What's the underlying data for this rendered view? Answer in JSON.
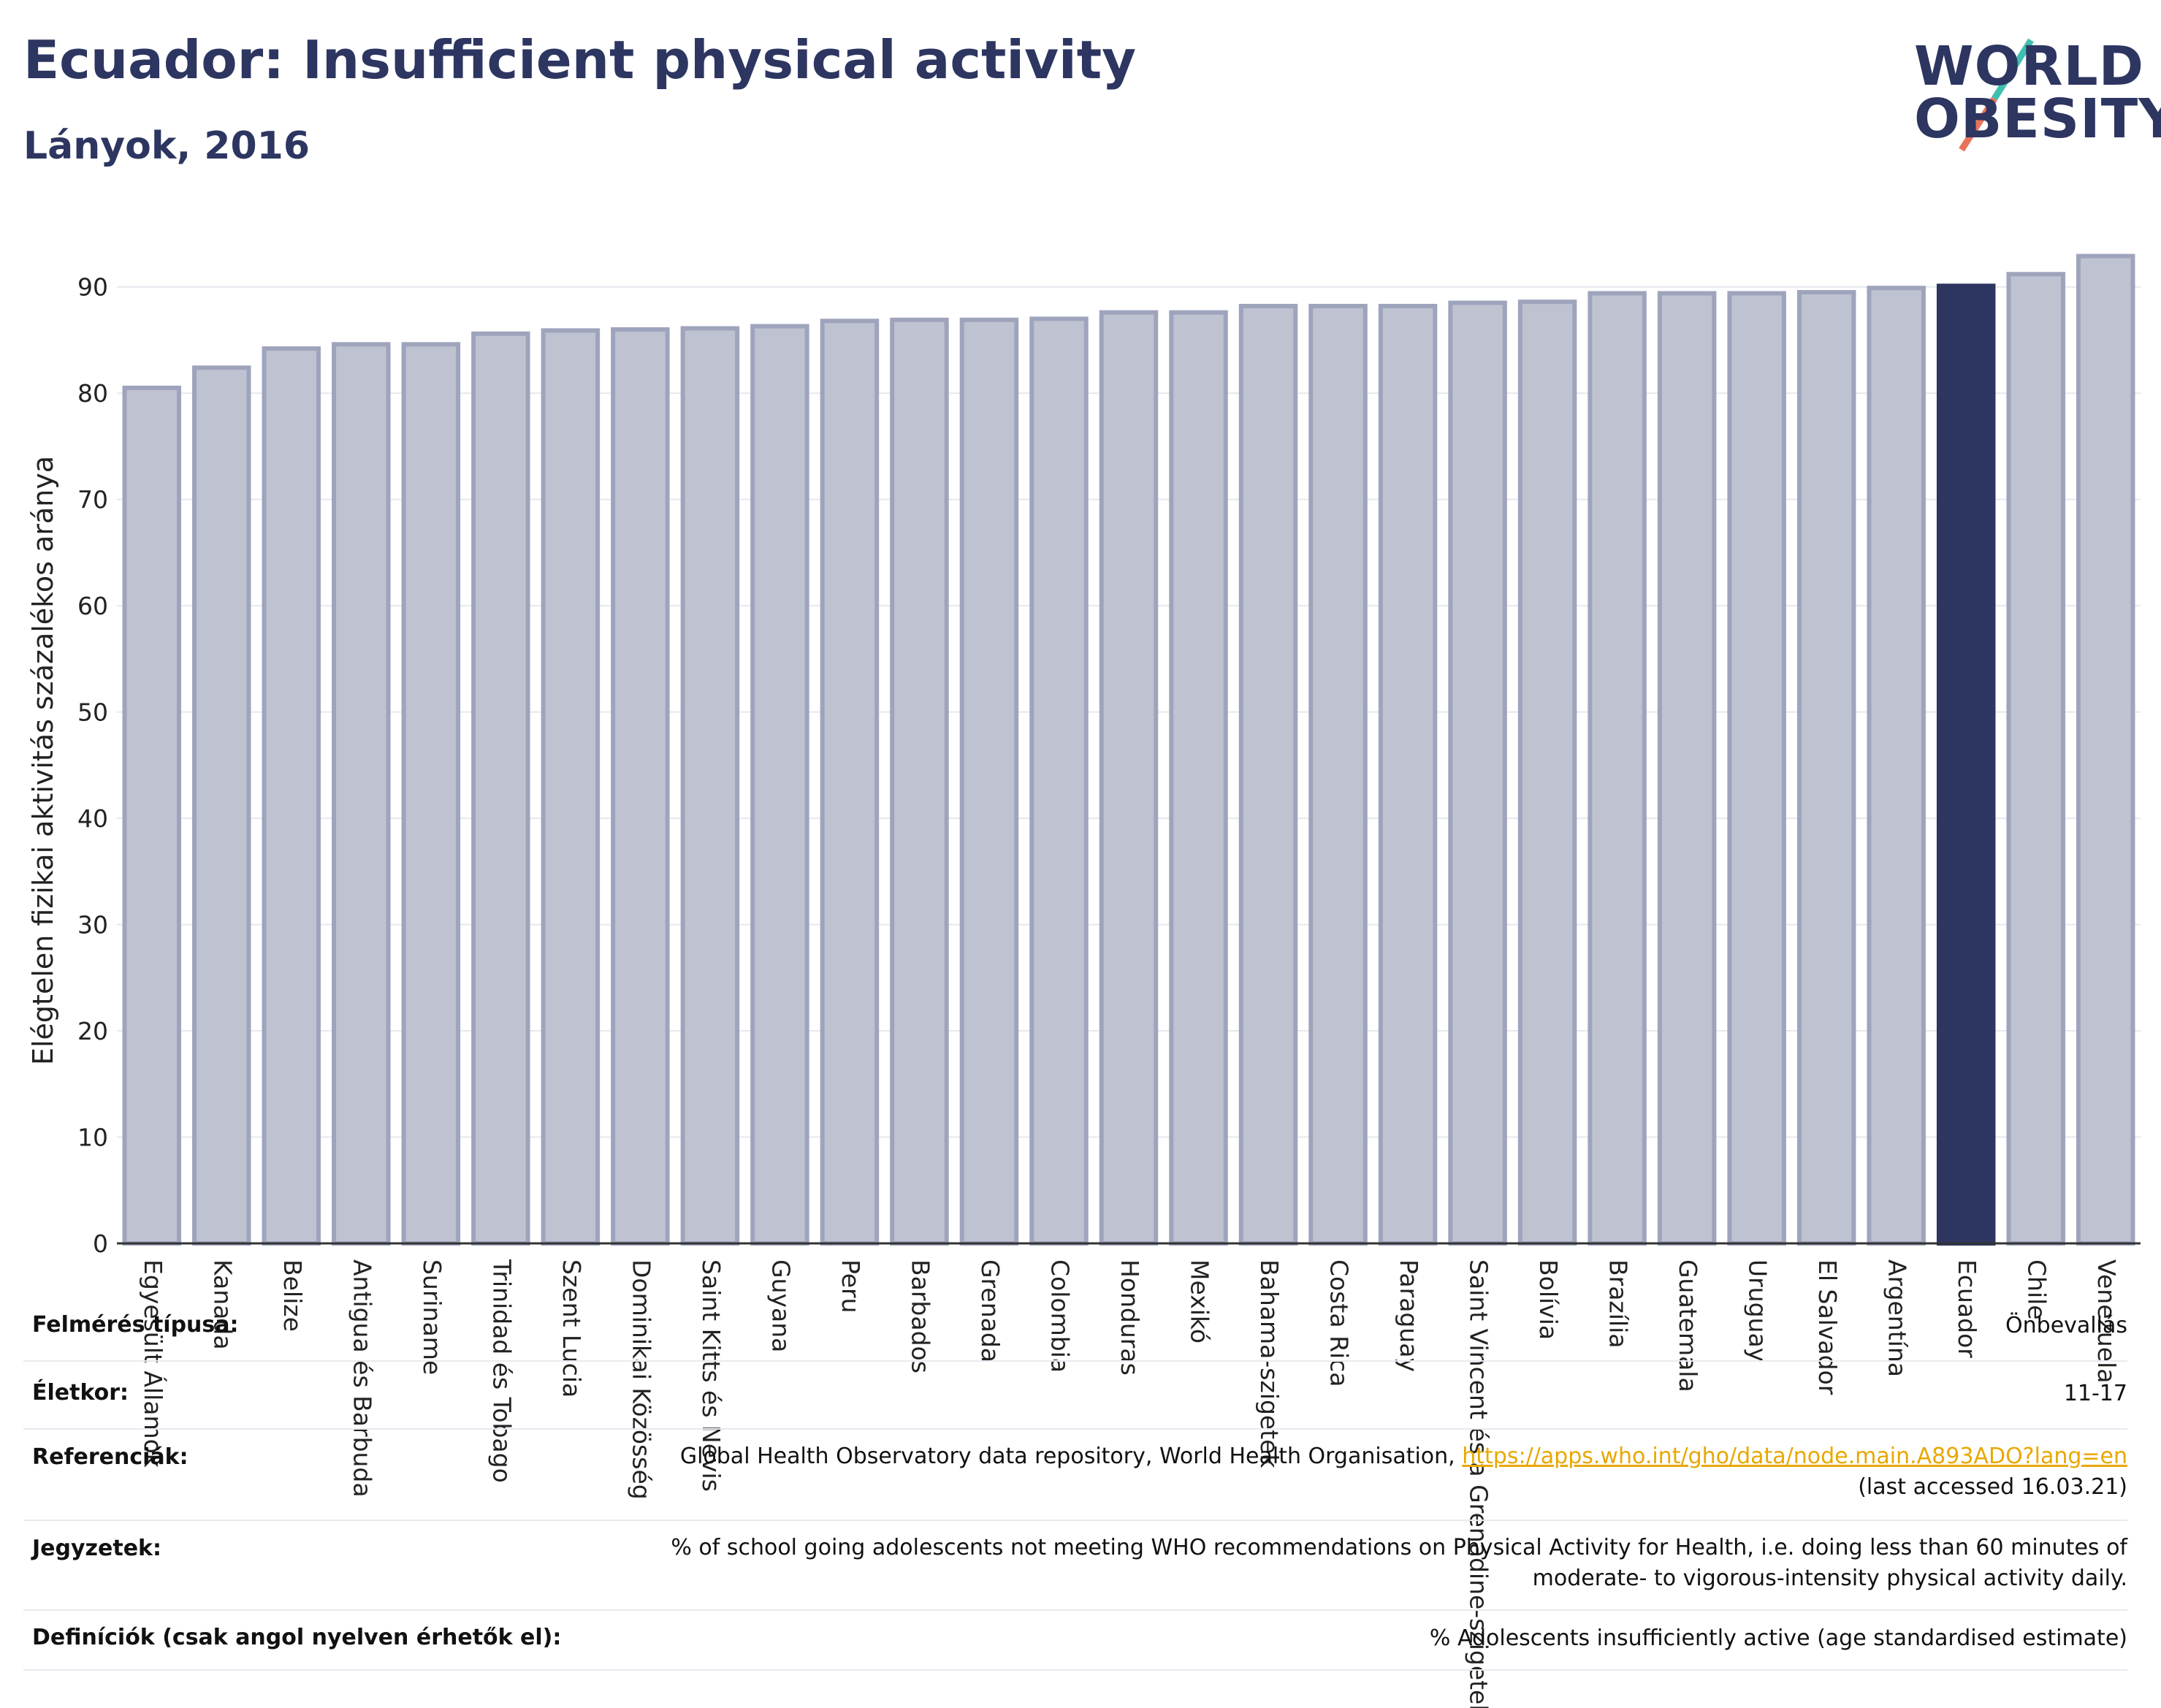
{
  "header": {
    "title": "Ecuador: Insufficient physical activity",
    "subtitle": "Lányok, 2016"
  },
  "logo": {
    "line1": "WORLD",
    "line2": "OBESITY",
    "slash_colors": [
      "#3fbfb0",
      "#e8735a"
    ]
  },
  "chart_data": {
    "type": "bar",
    "ylabel": "Elégtelen fizikai aktivitás százalékos aránya",
    "ylim": [
      0,
      95
    ],
    "yticks": [
      0,
      10,
      20,
      30,
      40,
      50,
      60,
      70,
      80,
      90
    ],
    "grid": true,
    "highlight": "Ecuador",
    "colors": {
      "bar": "#bfc2d0",
      "bar_edge": "#9fa4bd",
      "highlight": "#2d3561"
    },
    "categories": [
      "Egyesült Államok",
      "Kanada",
      "Belize",
      "Antigua és Barbuda",
      "Suriname",
      "Trinidad és Tobago",
      "Szent Lucia",
      "Dominikai Közösség",
      "Saint Kitts és Nevis",
      "Guyana",
      "Peru",
      "Barbados",
      "Grenada",
      "Colombia",
      "Honduras",
      "Mexikó",
      "Bahama-szigetek",
      "Costa Rica",
      "Paraguay",
      "Saint Vincent és a Grenadine-szigetek",
      "Bolívia",
      "Brazília",
      "Guatemala",
      "Uruguay",
      "El Salvador",
      "Argentína",
      "Ecuador",
      "Chile",
      "Venezuela"
    ],
    "values": [
      80.5,
      82.4,
      84.2,
      84.6,
      84.6,
      85.6,
      85.9,
      86.0,
      86.1,
      86.3,
      86.8,
      86.9,
      86.9,
      87.0,
      87.6,
      87.6,
      88.2,
      88.2,
      88.2,
      88.5,
      88.6,
      89.4,
      89.4,
      89.4,
      89.5,
      89.9,
      90.1,
      91.2,
      92.9
    ]
  },
  "meta": {
    "rows": [
      {
        "key": "Felmérés típusa:",
        "lines": [
          "Önbevallás"
        ]
      },
      {
        "key": "Életkor:",
        "lines": [
          "11-17"
        ]
      },
      {
        "key": "Referenciák:",
        "lines": [
          "Global Health Observatory data repository, World Health Organisation,",
          "(last accessed 16.03.21)"
        ],
        "link": "https://apps.who.int/gho/data/node.main.A893ADO?lang=en"
      },
      {
        "key": "Jegyzetek:",
        "lines": [
          "% of school going adolescents not meeting WHO recommendations on Physical Activity for Health, i.e. doing less than 60 minutes of",
          "moderate- to vigorous-intensity physical activity daily."
        ]
      },
      {
        "key": "Definíciók (csak angol nyelven érhetők el):",
        "lines": [
          "% Adolescents insufficiently active (age standardised estimate)"
        ]
      }
    ]
  }
}
